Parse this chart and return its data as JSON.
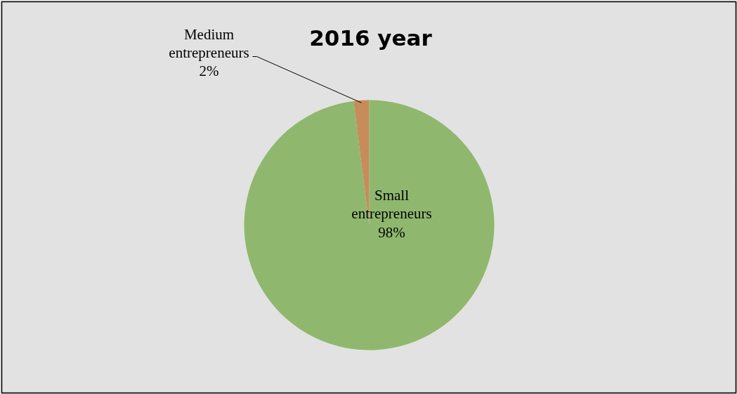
{
  "chart_data": {
    "type": "pie",
    "title": "2016 year",
    "categories": [
      "Medium entrepreneurs",
      "Small entrepreneurs"
    ],
    "values": [
      2,
      98
    ],
    "colors": [
      "#c68c5a",
      "#8fb86e"
    ],
    "value_labels": [
      "2%",
      "98%"
    ]
  }
}
